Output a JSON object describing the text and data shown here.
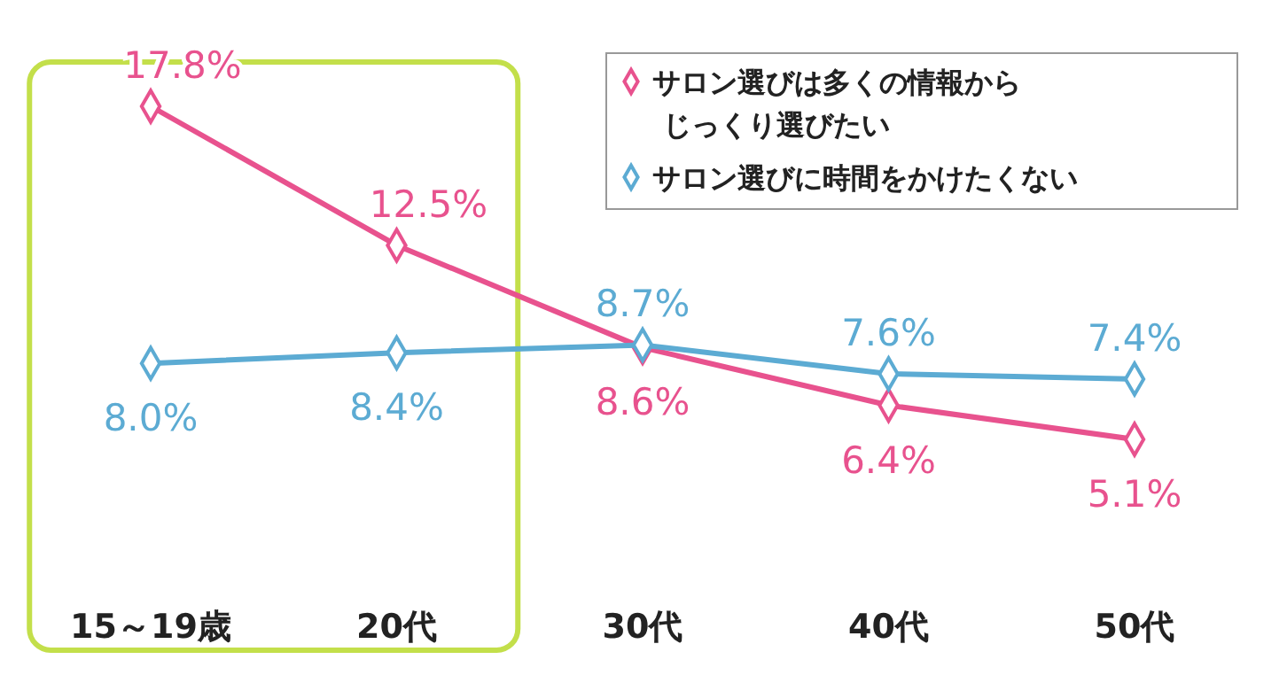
{
  "chart_data": {
    "type": "line",
    "categories": [
      "15～19歳",
      "20代",
      "30代",
      "40代",
      "50代"
    ],
    "series": [
      {
        "name": "サロン選びは多くの情報からじっくり選びたい",
        "color": "#e8528e",
        "values": [
          17.8,
          12.5,
          8.6,
          6.4,
          5.1
        ],
        "value_labels": [
          "17.8%",
          "12.5%",
          "8.6%",
          "6.4%",
          "5.1%"
        ]
      },
      {
        "name": "サロン選びに時間をかけたくない",
        "color": "#5cabd3",
        "values": [
          8.0,
          8.4,
          8.7,
          7.6,
          7.4
        ],
        "value_labels": [
          "8.0%",
          "8.4%",
          "8.7%",
          "7.6%",
          "7.4%"
        ]
      }
    ],
    "marker": "diamond",
    "legend": "top right",
    "tick_labels": "x"
  }
}
